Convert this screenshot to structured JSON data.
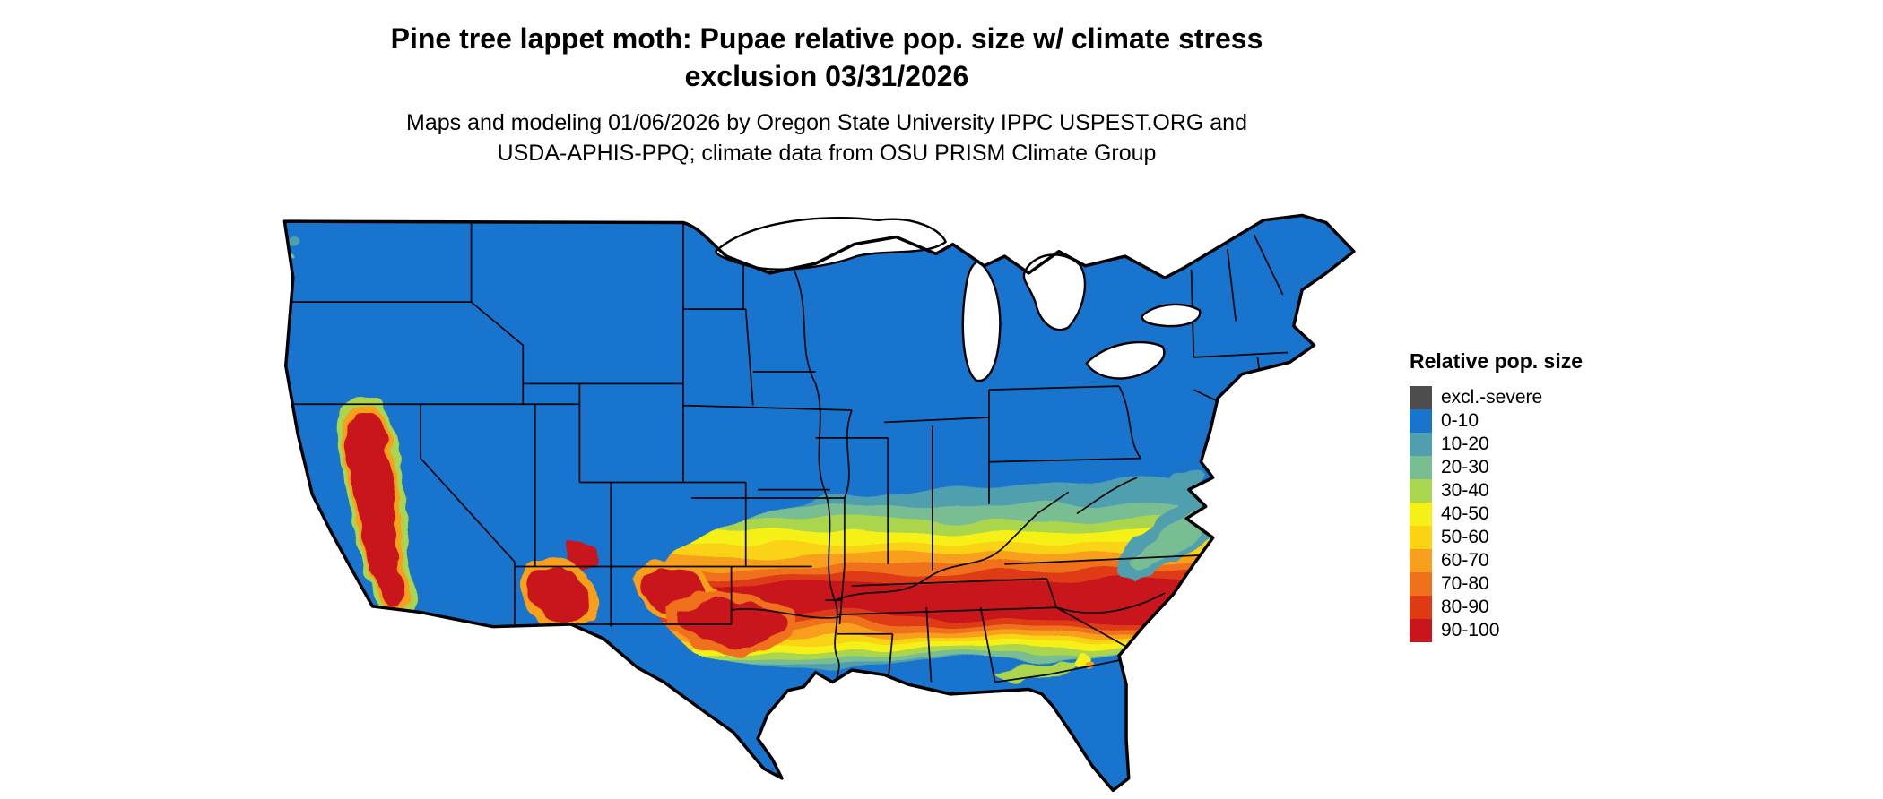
{
  "title": {
    "line1": "Pine tree lappet moth: Pupae relative pop. size w/ climate stress",
    "line2": "exclusion 03/31/2026"
  },
  "subtitle": {
    "line1": "Maps and modeling 01/06/2026 by Oregon State University IPPC USPEST.ORG and",
    "line2": "USDA-APHIS-PPQ; climate data from OSU PRISM Climate Group"
  },
  "map": {
    "region": "Continental United States",
    "type": "choropleth-raster",
    "pattern_note": "Northern and central states predominantly 0-10 (blue); high relative population band (80-100, red) across southern tier from California Central Valley, Arizona, New Mexico, Texas through the Gulf states into Georgia and the Carolinas; values grade through teal, green, yellow and orange toward the band; south Texas and peninsular Florida return to 0-10 blue"
  },
  "legend": {
    "title": "Relative pop. size",
    "entries": [
      {
        "label": "excl.-severe",
        "color": "#4D4D4D"
      },
      {
        "label": "0-10",
        "color": "#1874CD"
      },
      {
        "label": "10-20",
        "color": "#4F9FAE"
      },
      {
        "label": "20-30",
        "color": "#79BE93"
      },
      {
        "label": "30-40",
        "color": "#AAD54E"
      },
      {
        "label": "40-50",
        "color": "#F5F018"
      },
      {
        "label": "50-60",
        "color": "#FBD312"
      },
      {
        "label": "60-70",
        "color": "#F8A01E"
      },
      {
        "label": "70-80",
        "color": "#F0711C"
      },
      {
        "label": "80-90",
        "color": "#DE3B14"
      },
      {
        "label": "90-100",
        "color": "#C9161D"
      }
    ]
  },
  "chart_data": {
    "type": "heatmap",
    "title": "Pine tree lappet moth: Pupae relative pop. size w/ climate stress exclusion 03/31/2026",
    "legend_title": "Relative pop. size",
    "bins": [
      "excl.-severe",
      "0-10",
      "10-20",
      "20-30",
      "30-40",
      "40-50",
      "50-60",
      "60-70",
      "70-80",
      "80-90",
      "90-100"
    ],
    "bin_colors": [
      "#4D4D4D",
      "#1874CD",
      "#4F9FAE",
      "#79BE93",
      "#AAD54E",
      "#F5F018",
      "#FBD312",
      "#F8A01E",
      "#F0711C",
      "#DE3B14",
      "#C9161D"
    ],
    "legend_position": "right"
  }
}
